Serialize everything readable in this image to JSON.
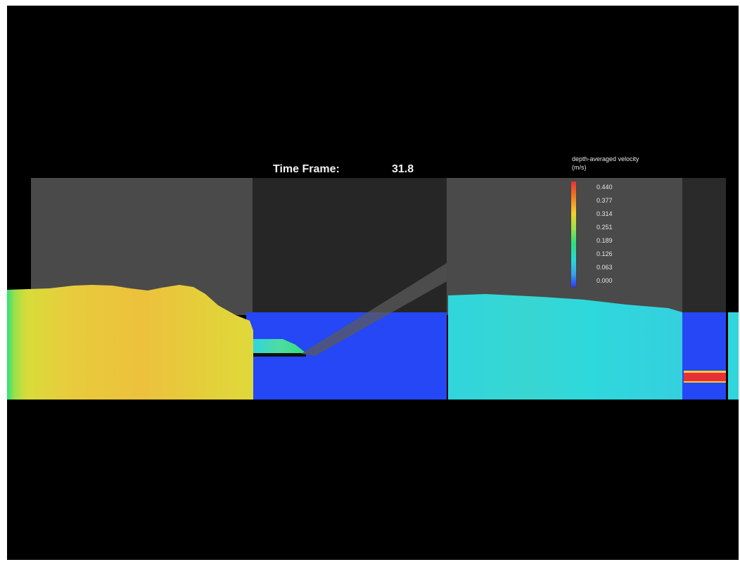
{
  "time_frame": {
    "label": "Time Frame:",
    "value": "31.8"
  },
  "legend": {
    "title": "depth-averaged velocity",
    "unit": "(m/s)",
    "ticks": [
      "0.440",
      "0.377",
      "0.314",
      "0.251",
      "0.189",
      "0.126",
      "0.063",
      "0.000"
    ],
    "colors": {
      "high": "#e8303a",
      "mid_high": "#f4d12a",
      "mid": "#2fe07a",
      "mid_low": "#27d8d8",
      "low": "#2a3cf6"
    }
  }
}
